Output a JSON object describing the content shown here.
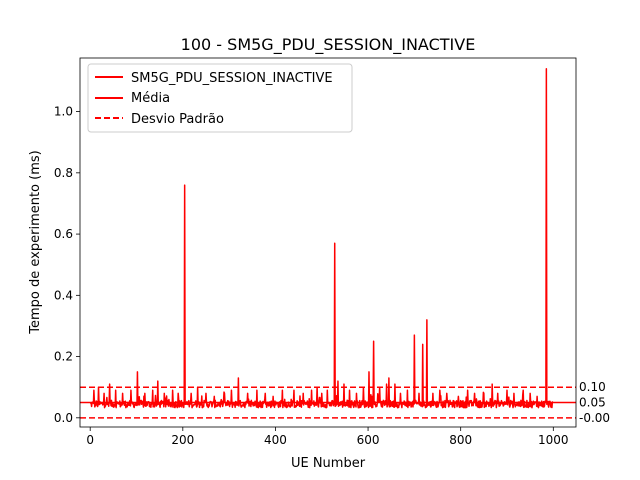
{
  "chart_data": {
    "type": "line",
    "title": "100 - SM5G_PDU_SESSION_INACTIVE",
    "xlabel": "UE Number",
    "ylabel": "Tempo de experimento (ms)",
    "xlim": [
      -22,
      1049
    ],
    "ylim": [
      -0.03,
      1.175
    ],
    "xticks": [
      "0",
      "200",
      "400",
      "600",
      "800",
      "1000"
    ],
    "yticks": [
      "0.0",
      "0.2",
      "0.4",
      "0.6",
      "0.8",
      "1.0"
    ],
    "xtick_values": [
      0,
      200,
      400,
      600,
      800,
      1000
    ],
    "ytick_values": [
      0.0,
      0.2,
      0.4,
      0.6,
      0.8,
      1.0
    ],
    "grid": false,
    "legend_position": "top-left",
    "colors": {
      "series": "#ff0000"
    },
    "series": [
      {
        "name": "SM5G_PDU_SESSION_INACTIVE",
        "style": "solid",
        "baseline": 0.045,
        "noise": 0.012,
        "n_points": 1000,
        "spikes": [
          {
            "x": 8,
            "y": 0.09
          },
          {
            "x": 18,
            "y": 0.1
          },
          {
            "x": 30,
            "y": 0.08
          },
          {
            "x": 42,
            "y": 0.11
          },
          {
            "x": 55,
            "y": 0.09
          },
          {
            "x": 70,
            "y": 0.08
          },
          {
            "x": 88,
            "y": 0.09
          },
          {
            "x": 102,
            "y": 0.15
          },
          {
            "x": 118,
            "y": 0.08
          },
          {
            "x": 135,
            "y": 0.09
          },
          {
            "x": 146,
            "y": 0.12
          },
          {
            "x": 160,
            "y": 0.08
          },
          {
            "x": 178,
            "y": 0.09
          },
          {
            "x": 190,
            "y": 0.08
          },
          {
            "x": 204,
            "y": 0.76
          },
          {
            "x": 218,
            "y": 0.08
          },
          {
            "x": 232,
            "y": 0.1
          },
          {
            "x": 250,
            "y": 0.08
          },
          {
            "x": 268,
            "y": 0.07
          },
          {
            "x": 290,
            "y": 0.08
          },
          {
            "x": 305,
            "y": 0.09
          },
          {
            "x": 320,
            "y": 0.13
          },
          {
            "x": 340,
            "y": 0.08
          },
          {
            "x": 360,
            "y": 0.09
          },
          {
            "x": 378,
            "y": 0.08
          },
          {
            "x": 395,
            "y": 0.07
          },
          {
            "x": 415,
            "y": 0.09
          },
          {
            "x": 440,
            "y": 0.09
          },
          {
            "x": 460,
            "y": 0.08
          },
          {
            "x": 478,
            "y": 0.09
          },
          {
            "x": 490,
            "y": 0.1
          },
          {
            "x": 500,
            "y": 0.08
          },
          {
            "x": 512,
            "y": 0.09
          },
          {
            "x": 528,
            "y": 0.57
          },
          {
            "x": 535,
            "y": 0.12
          },
          {
            "x": 548,
            "y": 0.11
          },
          {
            "x": 560,
            "y": 0.09
          },
          {
            "x": 575,
            "y": 0.08
          },
          {
            "x": 590,
            "y": 0.1
          },
          {
            "x": 602,
            "y": 0.15
          },
          {
            "x": 612,
            "y": 0.25
          },
          {
            "x": 625,
            "y": 0.1
          },
          {
            "x": 640,
            "y": 0.11
          },
          {
            "x": 645,
            "y": 0.13
          },
          {
            "x": 658,
            "y": 0.11
          },
          {
            "x": 670,
            "y": 0.08
          },
          {
            "x": 685,
            "y": 0.09
          },
          {
            "x": 700,
            "y": 0.27
          },
          {
            "x": 710,
            "y": 0.08
          },
          {
            "x": 718,
            "y": 0.24
          },
          {
            "x": 727,
            "y": 0.32
          },
          {
            "x": 740,
            "y": 0.08
          },
          {
            "x": 755,
            "y": 0.09
          },
          {
            "x": 770,
            "y": 0.08
          },
          {
            "x": 795,
            "y": 0.07
          },
          {
            "x": 815,
            "y": 0.09
          },
          {
            "x": 830,
            "y": 0.08
          },
          {
            "x": 850,
            "y": 0.08
          },
          {
            "x": 868,
            "y": 0.11
          },
          {
            "x": 880,
            "y": 0.08
          },
          {
            "x": 900,
            "y": 0.09
          },
          {
            "x": 915,
            "y": 0.08
          },
          {
            "x": 935,
            "y": 0.09
          },
          {
            "x": 950,
            "y": 0.08
          },
          {
            "x": 965,
            "y": 0.07
          },
          {
            "x": 985,
            "y": 1.14
          }
        ]
      },
      {
        "name": "Média",
        "style": "solid",
        "value": 0.05
      },
      {
        "name": "Desvio Padrão",
        "style": "dashed",
        "upper": 0.1,
        "lower": -0.0
      }
    ],
    "right_annotations": [
      "0.10",
      "0.05",
      "-0.00"
    ]
  }
}
